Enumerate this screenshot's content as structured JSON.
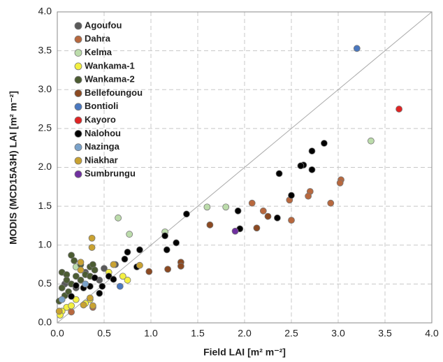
{
  "chart_data": {
    "type": "scatter",
    "x_label": "Field LAI [m² m⁻²]",
    "y_label": "MODIS (MCD15A3H) LAI [m² m⁻²]",
    "xlim": [
      0,
      4
    ],
    "ylim": [
      0,
      4
    ],
    "xticks": [
      {
        "value": 0,
        "label": "0.0"
      },
      0.5,
      {
        "value": 1,
        "label": "1.0"
      },
      1.5,
      {
        "value": 2,
        "label": "2.0"
      },
      2.5,
      {
        "value": 3,
        "label": "3.0"
      },
      3.5,
      {
        "value": 4,
        "label": "4.0"
      }
    ],
    "yticks": [
      {
        "value": 0,
        "label": "0.0"
      },
      0.5,
      {
        "value": 1,
        "label": "1.0"
      },
      1.5,
      {
        "value": 2,
        "label": "2.0"
      },
      2.5,
      {
        "value": 3,
        "label": "3.0"
      },
      3.5,
      {
        "value": 4,
        "label": "4.0"
      }
    ],
    "grid": true,
    "legend": "upper-left",
    "series": [
      {
        "name": "Agoufou",
        "color": "#5a5a5a",
        "x": [
          0.5,
          0.62,
          0.3,
          0.45,
          0.2,
          0.08
        ],
        "values": [
          0.7,
          0.75,
          0.65,
          0.55,
          0.45,
          0.5
        ]
      },
      {
        "name": "Dahra",
        "color": "#b8683e",
        "x": [
          3.03,
          3.02,
          2.92,
          2.7,
          2.68,
          2.48,
          2.5,
          2.2,
          2.08,
          0.15,
          0.38
        ],
        "values": [
          1.84,
          1.8,
          1.54,
          1.69,
          1.63,
          1.58,
          1.32,
          1.44,
          1.54,
          0.14,
          0.2
        ]
      },
      {
        "name": "Kelma",
        "color": "#bcdcab",
        "x": [
          3.35,
          1.8,
          1.6,
          1.15,
          0.65,
          0.77,
          0.2
        ],
        "values": [
          2.34,
          1.49,
          1.49,
          1.17,
          1.35,
          1.14,
          0.72
        ]
      },
      {
        "name": "Wankama-1",
        "color": "#f4f040",
        "x": [
          0.55,
          0.75,
          0.7,
          0.35,
          0.3,
          0.1,
          0.05,
          0.2,
          0.15,
          0.03
        ],
        "values": [
          0.65,
          0.55,
          0.6,
          0.3,
          0.25,
          0.2,
          0.15,
          0.3,
          0.22,
          0.1
        ]
      },
      {
        "name": "Wankama-2",
        "color": "#4c5c32",
        "x": [
          0.05,
          0.1,
          0.15,
          0.18,
          0.25,
          0.35,
          0.38,
          0.1,
          0.05,
          0.2,
          0.3,
          0.15,
          0.08,
          0.02,
          0.25,
          0.35,
          0.12,
          0.4
        ],
        "values": [
          0.65,
          0.62,
          0.87,
          0.8,
          0.75,
          0.72,
          0.75,
          0.55,
          0.45,
          0.6,
          0.62,
          0.5,
          0.35,
          0.28,
          0.55,
          0.6,
          0.4,
          0.68
        ]
      },
      {
        "name": "Bellefoungou",
        "color": "#8c4a22",
        "x": [
          2.25,
          2.13,
          1.63,
          1.32,
          1.32,
          1.18,
          0.98
        ],
        "values": [
          1.37,
          1.22,
          1.26,
          0.78,
          0.73,
          0.69,
          0.66
        ]
      },
      {
        "name": "Bontioli",
        "color": "#4a78c0",
        "x": [
          3.2,
          0.67
        ],
        "values": [
          3.53,
          0.47
        ]
      },
      {
        "name": "Kayoro",
        "color": "#e02424",
        "x": [
          3.65
        ],
        "values": [
          2.75
        ]
      },
      {
        "name": "Nalohou",
        "color": "#000000",
        "x": [
          2.85,
          2.72,
          2.63,
          2.6,
          2.72,
          2.37,
          2.5,
          2.35,
          1.38,
          1.93,
          1.27,
          1.95,
          1.15,
          1.17,
          0.88,
          0.75,
          0.72,
          0.85,
          0.55,
          0.6,
          0.48,
          0.4,
          0.35,
          0.28,
          0.2,
          0.45,
          0.15
        ],
        "values": [
          2.31,
          2.21,
          2.03,
          2.02,
          1.97,
          1.92,
          1.64,
          1.35,
          1.4,
          1.44,
          1.03,
          1.21,
          1.12,
          0.94,
          0.94,
          0.91,
          0.82,
          0.72,
          0.6,
          0.56,
          0.47,
          0.58,
          0.47,
          0.45,
          0.48,
          0.38,
          0.34
        ]
      },
      {
        "name": "Nazinga",
        "color": "#7aa2ca",
        "x": [
          0.3,
          0.05
        ],
        "values": [
          0.5,
          0.3
        ]
      },
      {
        "name": "Niakhar",
        "color": "#c9a232",
        "x": [
          0.37,
          0.37,
          0.25,
          0.25,
          0.35,
          0.38,
          0.28,
          0.88,
          0.6,
          0.02
        ],
        "values": [
          1.09,
          0.97,
          0.78,
          0.68,
          0.32,
          0.22,
          0.23,
          0.74,
          0.75,
          0.15
        ]
      },
      {
        "name": "Sumbrungu",
        "color": "#7030a0",
        "x": [
          1.9
        ],
        "values": [
          1.18
        ]
      }
    ]
  }
}
